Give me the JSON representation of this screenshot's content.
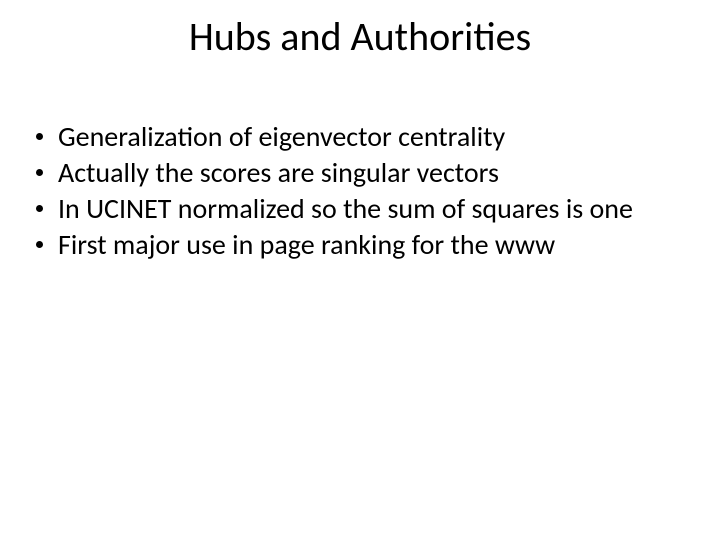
{
  "slide": {
    "title": "Hubs and Authorities",
    "title_fontsize": 40,
    "title_color": "#000000",
    "body_fontsize": 28,
    "body_color": "#000000",
    "background_color": "#ffffff",
    "bullet_color": "#000000",
    "bullets": [
      "Generalization of eigenvector centrality",
      "Actually the scores are singular vectors",
      "In UCINET normalized so the sum of squares is one",
      "First major use in page ranking for the www"
    ]
  }
}
